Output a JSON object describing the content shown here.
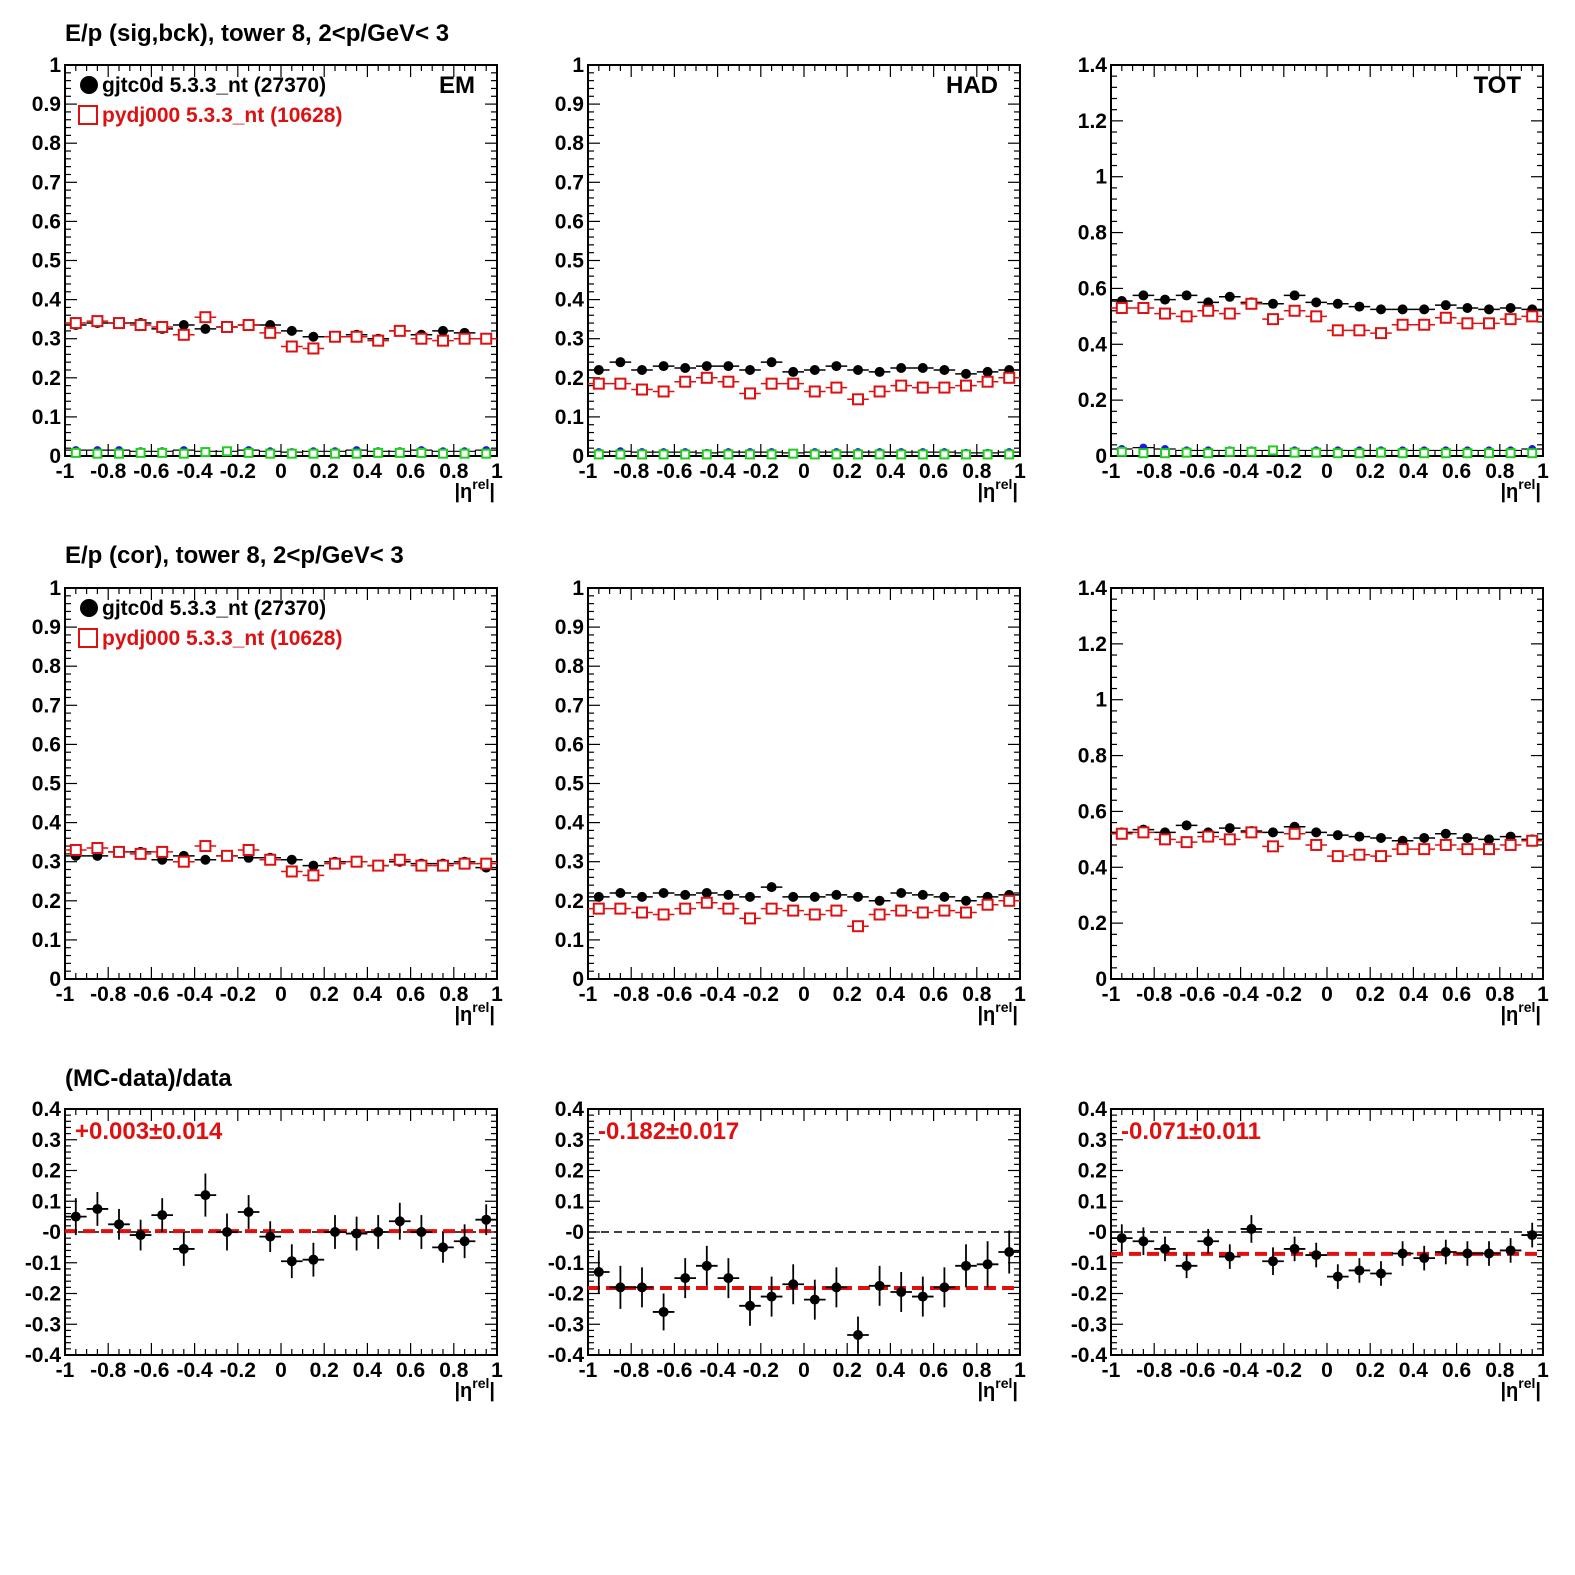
{
  "row_titles": [
    "E/p (sig,bck), tower 8,  2<p/GeV< 3",
    "E/p (cor), tower 8,  2<p/GeV< 3",
    "(MC-data)/data"
  ],
  "colors": {
    "data": "#000000",
    "mc": "#dd1111",
    "blue": "#1a1ae6",
    "green": "#22cc22",
    "fit_line": "#e01010"
  },
  "chart_data": [
    {
      "type": "scatter",
      "row": 0,
      "col": 0,
      "panel_tag": "EM",
      "x_tick_labels": [
        "-1",
        "-0.8",
        "-0.6",
        "-0.4",
        "-0.2",
        "0",
        "0.2",
        "0.4",
        "0.6",
        "0.8",
        "1"
      ],
      "y_tick_labels": [
        "0",
        "0.1",
        "0.2",
        "0.3",
        "0.4",
        "0.5",
        "0.6",
        "0.7",
        "0.8",
        "0.9",
        "1"
      ],
      "xlabel": "|η^rel|",
      "xlim": [
        -1,
        1
      ],
      "ylim": [
        0,
        1
      ],
      "legend": [
        "gjtc0d 5.3.3_nt (27370)",
        "pydj000 5.3.3_nt (10628)"
      ],
      "x": [
        -0.95,
        -0.85,
        -0.75,
        -0.65,
        -0.55,
        -0.45,
        -0.35,
        -0.25,
        -0.15,
        -0.05,
        0.05,
        0.15,
        0.25,
        0.35,
        0.45,
        0.55,
        0.65,
        0.75,
        0.85,
        0.95
      ],
      "series": [
        {
          "name": "gjtc0d 5.3.3_nt (27370)",
          "marker": "filled-circle",
          "values": [
            0.335,
            0.34,
            0.34,
            0.34,
            0.325,
            0.335,
            0.325,
            0.33,
            0.335,
            0.335,
            0.32,
            0.305,
            0.305,
            0.31,
            0.3,
            0.32,
            0.31,
            0.32,
            0.315,
            0.3
          ]
        },
        {
          "name": "pydj000 5.3.3_nt (10628)",
          "marker": "open-square",
          "values": [
            0.34,
            0.345,
            0.34,
            0.335,
            0.33,
            0.31,
            0.355,
            0.33,
            0.335,
            0.315,
            0.28,
            0.275,
            0.305,
            0.305,
            0.295,
            0.32,
            0.3,
            0.295,
            0.3,
            0.3
          ]
        },
        {
          "marker": "blue-circle",
          "values": [
            0.015,
            0.015,
            0.015,
            0.012,
            0.012,
            0.015,
            0.012,
            0.012,
            0.015,
            0.012,
            0.01,
            0.012,
            0.012,
            0.015,
            0.012,
            0.012,
            0.015,
            0.012,
            0.012,
            0.015
          ]
        },
        {
          "marker": "green-square",
          "values": [
            0.008,
            0.006,
            0.006,
            0.008,
            0.008,
            0.006,
            0.01,
            0.012,
            0.008,
            0.006,
            0.006,
            0.006,
            0.006,
            0.006,
            0.008,
            0.008,
            0.008,
            0.006,
            0.006,
            0.006
          ]
        }
      ]
    },
    {
      "type": "scatter",
      "row": 0,
      "col": 1,
      "panel_tag": "HAD",
      "x_tick_labels": [
        "-1",
        "-0.8",
        "-0.6",
        "-0.4",
        "-0.2",
        "0",
        "0.2",
        "0.4",
        "0.6",
        "0.8",
        "1"
      ],
      "y_tick_labels": [
        "0",
        "0.1",
        "0.2",
        "0.3",
        "0.4",
        "0.5",
        "0.6",
        "0.7",
        "0.8",
        "0.9",
        "1"
      ],
      "xlabel": "|η^rel|",
      "xlim": [
        -1,
        1
      ],
      "ylim": [
        0,
        1
      ],
      "x": [
        -0.95,
        -0.85,
        -0.75,
        -0.65,
        -0.55,
        -0.45,
        -0.35,
        -0.25,
        -0.15,
        -0.05,
        0.05,
        0.15,
        0.25,
        0.35,
        0.45,
        0.55,
        0.65,
        0.75,
        0.85,
        0.95
      ],
      "series": [
        {
          "name": "gjtc0d 5.3.3_nt (27370)",
          "marker": "filled-circle",
          "values": [
            0.22,
            0.24,
            0.22,
            0.23,
            0.225,
            0.23,
            0.23,
            0.22,
            0.24,
            0.215,
            0.22,
            0.23,
            0.22,
            0.215,
            0.225,
            0.225,
            0.22,
            0.21,
            0.215,
            0.22
          ]
        },
        {
          "name": "pydj000 5.3.3_nt (10628)",
          "marker": "open-square",
          "values": [
            0.185,
            0.185,
            0.17,
            0.165,
            0.19,
            0.2,
            0.19,
            0.16,
            0.185,
            0.185,
            0.165,
            0.175,
            0.145,
            0.165,
            0.18,
            0.175,
            0.175,
            0.18,
            0.19,
            0.2
          ]
        },
        {
          "marker": "blue-circle",
          "values": [
            0.01,
            0.012,
            0.01,
            0.01,
            0.01,
            0.008,
            0.01,
            0.01,
            0.01,
            0.008,
            0.01,
            0.01,
            0.01,
            0.01,
            0.01,
            0.01,
            0.01,
            0.008,
            0.008,
            0.01
          ]
        },
        {
          "marker": "green-square",
          "values": [
            0.004,
            0.004,
            0.004,
            0.004,
            0.004,
            0.004,
            0.004,
            0.004,
            0.004,
            0.006,
            0.004,
            0.004,
            0.004,
            0.004,
            0.004,
            0.004,
            0.004,
            0.004,
            0.004,
            0.004
          ]
        }
      ]
    },
    {
      "type": "scatter",
      "row": 0,
      "col": 2,
      "panel_tag": "TOT",
      "x_tick_labels": [
        "-1",
        "-0.8",
        "-0.6",
        "-0.4",
        "-0.2",
        "0",
        "0.2",
        "0.4",
        "0.6",
        "0.8",
        "1"
      ],
      "y_tick_labels": [
        "0",
        "0.2",
        "0.4",
        "0.6",
        "0.8",
        "1",
        "1.2",
        "1.4"
      ],
      "xlabel": "|η^rel|",
      "xlim": [
        -1,
        1
      ],
      "ylim": [
        0,
        1.4
      ],
      "x": [
        -0.95,
        -0.85,
        -0.75,
        -0.65,
        -0.55,
        -0.45,
        -0.35,
        -0.25,
        -0.15,
        -0.05,
        0.05,
        0.15,
        0.25,
        0.35,
        0.45,
        0.55,
        0.65,
        0.75,
        0.85,
        0.95
      ],
      "series": [
        {
          "name": "gjtc0d 5.3.3_nt (27370)",
          "marker": "filled-circle",
          "values": [
            0.555,
            0.575,
            0.56,
            0.575,
            0.55,
            0.57,
            0.55,
            0.545,
            0.575,
            0.55,
            0.545,
            0.535,
            0.525,
            0.525,
            0.525,
            0.54,
            0.53,
            0.525,
            0.53,
            0.525
          ]
        },
        {
          "name": "pydj000 5.3.3_nt (10628)",
          "marker": "open-square",
          "values": [
            0.53,
            0.53,
            0.51,
            0.5,
            0.52,
            0.51,
            0.545,
            0.49,
            0.52,
            0.5,
            0.45,
            0.45,
            0.44,
            0.47,
            0.47,
            0.495,
            0.475,
            0.475,
            0.49,
            0.5
          ]
        },
        {
          "marker": "blue-circle",
          "values": [
            0.025,
            0.03,
            0.025,
            0.02,
            0.02,
            0.02,
            0.02,
            0.02,
            0.02,
            0.02,
            0.02,
            0.02,
            0.02,
            0.02,
            0.02,
            0.02,
            0.02,
            0.02,
            0.02,
            0.025
          ]
        },
        {
          "marker": "green-square",
          "values": [
            0.015,
            0.01,
            0.01,
            0.012,
            0.01,
            0.015,
            0.015,
            0.02,
            0.012,
            0.012,
            0.01,
            0.01,
            0.012,
            0.01,
            0.01,
            0.01,
            0.01,
            0.01,
            0.01,
            0.01
          ]
        }
      ]
    },
    {
      "type": "scatter",
      "row": 1,
      "col": 0,
      "panel_tag": "",
      "x_tick_labels": [
        "-1",
        "-0.8",
        "-0.6",
        "-0.4",
        "-0.2",
        "0",
        "0.2",
        "0.4",
        "0.6",
        "0.8",
        "1"
      ],
      "y_tick_labels": [
        "0",
        "0.1",
        "0.2",
        "0.3",
        "0.4",
        "0.5",
        "0.6",
        "0.7",
        "0.8",
        "0.9",
        "1"
      ],
      "xlabel": "|η^rel|",
      "xlim": [
        -1,
        1
      ],
      "ylim": [
        0,
        1
      ],
      "legend": [
        "gjtc0d 5.3.3_nt (27370)",
        "pydj000 5.3.3_nt (10628)"
      ],
      "x": [
        -0.95,
        -0.85,
        -0.75,
        -0.65,
        -0.55,
        -0.45,
        -0.35,
        -0.25,
        -0.15,
        -0.05,
        0.05,
        0.15,
        0.25,
        0.35,
        0.45,
        0.55,
        0.65,
        0.75,
        0.85,
        0.95
      ],
      "series": [
        {
          "name": "gjtc0d 5.3.3_nt (27370)",
          "marker": "filled-circle",
          "values": [
            0.315,
            0.315,
            0.325,
            0.325,
            0.305,
            0.315,
            0.305,
            0.315,
            0.31,
            0.31,
            0.305,
            0.29,
            0.3,
            0.3,
            0.29,
            0.3,
            0.295,
            0.295,
            0.3,
            0.285
          ]
        },
        {
          "name": "pydj000 5.3.3_nt (10628)",
          "marker": "open-square",
          "values": [
            0.33,
            0.335,
            0.325,
            0.32,
            0.325,
            0.3,
            0.34,
            0.315,
            0.33,
            0.305,
            0.275,
            0.265,
            0.295,
            0.3,
            0.29,
            0.305,
            0.29,
            0.29,
            0.295,
            0.295
          ]
        }
      ]
    },
    {
      "type": "scatter",
      "row": 1,
      "col": 1,
      "panel_tag": "",
      "x_tick_labels": [
        "-1",
        "-0.8",
        "-0.6",
        "-0.4",
        "-0.2",
        "0",
        "0.2",
        "0.4",
        "0.6",
        "0.8",
        "1"
      ],
      "y_tick_labels": [
        "0",
        "0.1",
        "0.2",
        "0.3",
        "0.4",
        "0.5",
        "0.6",
        "0.7",
        "0.8",
        "0.9",
        "1"
      ],
      "xlabel": "|η^rel|",
      "xlim": [
        -1,
        1
      ],
      "ylim": [
        0,
        1
      ],
      "x": [
        -0.95,
        -0.85,
        -0.75,
        -0.65,
        -0.55,
        -0.45,
        -0.35,
        -0.25,
        -0.15,
        -0.05,
        0.05,
        0.15,
        0.25,
        0.35,
        0.45,
        0.55,
        0.65,
        0.75,
        0.85,
        0.95
      ],
      "series": [
        {
          "name": "gjtc0d 5.3.3_nt (27370)",
          "marker": "filled-circle",
          "values": [
            0.21,
            0.22,
            0.21,
            0.22,
            0.215,
            0.22,
            0.215,
            0.21,
            0.235,
            0.21,
            0.21,
            0.215,
            0.21,
            0.2,
            0.22,
            0.215,
            0.21,
            0.2,
            0.21,
            0.215
          ]
        },
        {
          "name": "pydj000 5.3.3_nt (10628)",
          "marker": "open-square",
          "values": [
            0.18,
            0.18,
            0.17,
            0.165,
            0.18,
            0.195,
            0.18,
            0.155,
            0.18,
            0.175,
            0.165,
            0.175,
            0.135,
            0.165,
            0.175,
            0.17,
            0.175,
            0.17,
            0.19,
            0.2
          ]
        }
      ]
    },
    {
      "type": "scatter",
      "row": 1,
      "col": 2,
      "panel_tag": "",
      "x_tick_labels": [
        "-1",
        "-0.8",
        "-0.6",
        "-0.4",
        "-0.2",
        "0",
        "0.2",
        "0.4",
        "0.6",
        "0.8",
        "1"
      ],
      "y_tick_labels": [
        "0",
        "0.2",
        "0.4",
        "0.6",
        "0.8",
        "1",
        "1.2",
        "1.4"
      ],
      "xlabel": "|η^rel|",
      "xlim": [
        -1,
        1
      ],
      "ylim": [
        0,
        1.4
      ],
      "x": [
        -0.95,
        -0.85,
        -0.75,
        -0.65,
        -0.55,
        -0.45,
        -0.35,
        -0.25,
        -0.15,
        -0.05,
        0.05,
        0.15,
        0.25,
        0.35,
        0.45,
        0.55,
        0.65,
        0.75,
        0.85,
        0.95
      ],
      "series": [
        {
          "name": "gjtc0d 5.3.3_nt (27370)",
          "marker": "filled-circle",
          "values": [
            0.525,
            0.535,
            0.525,
            0.55,
            0.525,
            0.54,
            0.53,
            0.525,
            0.545,
            0.525,
            0.515,
            0.51,
            0.505,
            0.495,
            0.505,
            0.52,
            0.505,
            0.5,
            0.51,
            0.5
          ]
        },
        {
          "name": "pydj000 5.3.3_nt (10628)",
          "marker": "open-square",
          "values": [
            0.52,
            0.525,
            0.5,
            0.49,
            0.51,
            0.5,
            0.525,
            0.475,
            0.52,
            0.48,
            0.44,
            0.445,
            0.44,
            0.465,
            0.465,
            0.48,
            0.465,
            0.465,
            0.48,
            0.495
          ]
        }
      ]
    },
    {
      "type": "scatter",
      "row": 2,
      "col": 0,
      "fit_text": "+0.003±0.014",
      "fit_value": 0.003,
      "x_tick_labels": [
        "-1",
        "-0.8",
        "-0.6",
        "-0.4",
        "-0.2",
        "0",
        "0.2",
        "0.4",
        "0.6",
        "0.8",
        "1"
      ],
      "y_tick_labels": [
        "-0.4",
        "-0.3",
        "-0.2",
        "-0.1",
        "-0",
        "0.1",
        "0.2",
        "0.3",
        "0.4"
      ],
      "xlabel": "|η^rel|",
      "xlim": [
        -1,
        1
      ],
      "ylim": [
        -0.4,
        0.4
      ],
      "x": [
        -0.95,
        -0.85,
        -0.75,
        -0.65,
        -0.55,
        -0.45,
        -0.35,
        -0.25,
        -0.15,
        -0.05,
        0.05,
        0.15,
        0.25,
        0.35,
        0.45,
        0.55,
        0.65,
        0.75,
        0.85,
        0.95
      ],
      "values": [
        0.05,
        0.075,
        0.025,
        -0.01,
        0.055,
        -0.055,
        0.12,
        0.0,
        0.065,
        -0.015,
        -0.095,
        -0.09,
        0.0,
        -0.005,
        0.0,
        0.035,
        0.0,
        -0.05,
        -0.03,
        0.04
      ],
      "errors": [
        0.06,
        0.055,
        0.05,
        0.05,
        0.055,
        0.055,
        0.07,
        0.06,
        0.055,
        0.05,
        0.055,
        0.055,
        0.055,
        0.055,
        0.055,
        0.06,
        0.055,
        0.05,
        0.055,
        0.05
      ]
    },
    {
      "type": "scatter",
      "row": 2,
      "col": 1,
      "fit_text": "-0.182±0.017",
      "fit_value": -0.182,
      "x_tick_labels": [
        "-1",
        "-0.8",
        "-0.6",
        "-0.4",
        "-0.2",
        "0",
        "0.2",
        "0.4",
        "0.6",
        "0.8",
        "1"
      ],
      "y_tick_labels": [
        "-0.4",
        "-0.3",
        "-0.2",
        "-0.1",
        "-0",
        "0.1",
        "0.2",
        "0.3",
        "0.4"
      ],
      "xlabel": "|η^rel|",
      "xlim": [
        -1,
        1
      ],
      "ylim": [
        -0.4,
        0.4
      ],
      "x": [
        -0.95,
        -0.85,
        -0.75,
        -0.65,
        -0.55,
        -0.45,
        -0.35,
        -0.25,
        -0.15,
        -0.05,
        0.05,
        0.15,
        0.25,
        0.35,
        0.45,
        0.55,
        0.65,
        0.75,
        0.85,
        0.95
      ],
      "values": [
        -0.13,
        -0.18,
        -0.18,
        -0.26,
        -0.15,
        -0.11,
        -0.15,
        -0.24,
        -0.21,
        -0.17,
        -0.22,
        -0.18,
        -0.335,
        -0.175,
        -0.195,
        -0.21,
        -0.18,
        -0.11,
        -0.105,
        -0.065
      ],
      "errors": [
        0.07,
        0.07,
        0.065,
        0.06,
        0.065,
        0.065,
        0.065,
        0.065,
        0.065,
        0.065,
        0.065,
        0.065,
        0.06,
        0.065,
        0.065,
        0.065,
        0.065,
        0.07,
        0.075,
        0.07
      ]
    },
    {
      "type": "scatter",
      "row": 2,
      "col": 2,
      "fit_text": "-0.071±0.011",
      "fit_value": -0.071,
      "x_tick_labels": [
        "-1",
        "-0.8",
        "-0.6",
        "-0.4",
        "-0.2",
        "0",
        "0.2",
        "0.4",
        "0.6",
        "0.8",
        "1"
      ],
      "y_tick_labels": [
        "-0.4",
        "-0.3",
        "-0.2",
        "-0.1",
        "-0",
        "0.1",
        "0.2",
        "0.3",
        "0.4"
      ],
      "xlabel": "|η^rel|",
      "xlim": [
        -1,
        1
      ],
      "ylim": [
        -0.4,
        0.4
      ],
      "x": [
        -0.95,
        -0.85,
        -0.75,
        -0.65,
        -0.55,
        -0.45,
        -0.35,
        -0.25,
        -0.15,
        -0.05,
        0.05,
        0.15,
        0.25,
        0.35,
        0.45,
        0.55,
        0.65,
        0.75,
        0.85,
        0.95
      ],
      "values": [
        -0.02,
        -0.03,
        -0.055,
        -0.11,
        -0.03,
        -0.08,
        0.01,
        -0.095,
        -0.055,
        -0.075,
        -0.145,
        -0.125,
        -0.135,
        -0.07,
        -0.085,
        -0.065,
        -0.07,
        -0.07,
        -0.06,
        -0.01
      ],
      "errors": [
        0.045,
        0.045,
        0.04,
        0.04,
        0.04,
        0.04,
        0.045,
        0.045,
        0.04,
        0.04,
        0.04,
        0.04,
        0.04,
        0.04,
        0.04,
        0.04,
        0.04,
        0.04,
        0.04,
        0.04
      ]
    }
  ]
}
